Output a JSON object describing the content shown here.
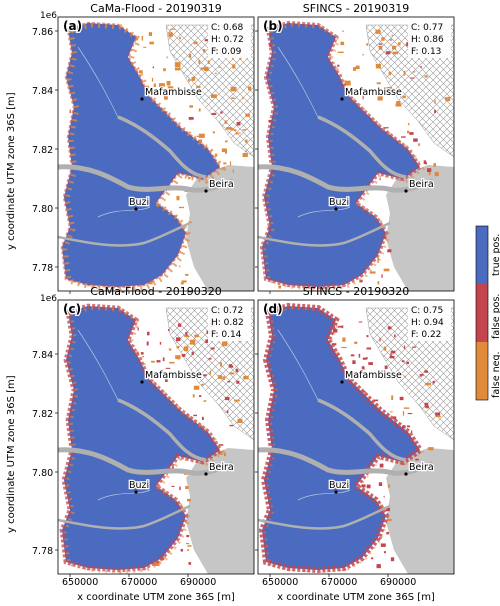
{
  "figure": {
    "ylabel": "y coordinate UTM zone 36S [m]",
    "xlabel": "x coordinate UTM zone 36S [m]",
    "y_offset": "1e6"
  },
  "axes": {
    "xticks": [
      "650000",
      "670000",
      "690000"
    ],
    "yticks": [
      "7.86",
      "7.84",
      "7.82",
      "7.80",
      "7.78"
    ]
  },
  "panels": [
    {
      "title": "CaMa-Flood - 20190319",
      "letter": "(a)",
      "stats": [
        "C: 0.68",
        "H: 0.72",
        "F: 0.09"
      ],
      "fp_density": 0.15,
      "fn_density": 1.0
    },
    {
      "title": "SFINCS - 20190319",
      "letter": "(b)",
      "stats": [
        "C: 0.77",
        "H: 0.86",
        "F: 0.13"
      ],
      "fp_density": 0.55,
      "fn_density": 0.55
    },
    {
      "title": "CaMa-Flood - 20190320",
      "letter": "(c)",
      "stats": [
        "C: 0.72",
        "H: 0.82",
        "F: 0.14"
      ],
      "fp_density": 0.7,
      "fn_density": 0.6
    },
    {
      "title": "SFINCS - 20190320",
      "letter": "(d)",
      "stats": [
        "C: 0.75",
        "H: 0.94",
        "F: 0.22"
      ],
      "fp_density": 1.0,
      "fn_density": 0.25
    }
  ],
  "places": {
    "mafambisse": "Mafambisse",
    "beira": "Beira",
    "buzi": "Buzi"
  },
  "legend": {
    "entries": [
      {
        "label": "true pos.",
        "color": "#4a6bbf"
      },
      {
        "label": "false pos.",
        "color": "#c4454d"
      },
      {
        "label": "false neg.",
        "color": "#e08a3c"
      }
    ]
  },
  "colors": {
    "ocean": "#c6c6c6",
    "river": "#b0b0b0",
    "hatch": "#999999",
    "flood": "#4a6bbf",
    "false_pos": "#c4454d",
    "false_neg": "#e08a3c"
  }
}
